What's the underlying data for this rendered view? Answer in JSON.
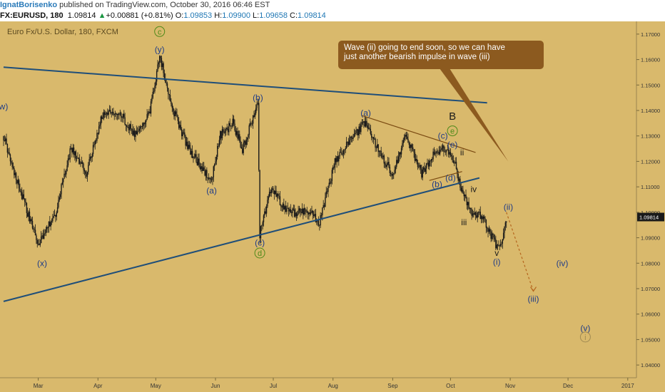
{
  "header": {
    "user": "IgnatBorisenko",
    "published": "published on TradingView.com, October 30, 2016 06:46 EST",
    "symbol": "FX:EURUSD, 180",
    "last": "1.09814",
    "arrow": "▲",
    "change": "+0.00881 (+0.81%)",
    "o_label": "O:",
    "o": "1.09853",
    "h_label": "H:",
    "h": "1.09900",
    "l_label": "L:",
    "l": "1.09658",
    "c_label": "C:",
    "c": "1.09814"
  },
  "callout": {
    "line1": "Wave (ii) going to end soon, so we can have",
    "line2": "just another bearish impulse in wave (iii)"
  },
  "colors": {
    "background": "#d9b96c",
    "candle": "#1a1a1a",
    "trendline": "#1f4e79",
    "wedge": "#7a4a12",
    "wave_label": "#1f3c88",
    "circle_label": "#4f8a1a",
    "forecast": "#b5651d",
    "price_tag": "#1a1a1a"
  },
  "chart_data": {
    "type": "candlestick",
    "instrument": "Euro Fx/U.S. Dollar, 180, FXCM",
    "last_price": "1.09814",
    "y_ticks": [
      "1.17000",
      "1.16000",
      "1.15000",
      "1.14000",
      "1.13000",
      "1.12000",
      "1.11000",
      "1.10000",
      "1.09000",
      "1.08000",
      "1.07000",
      "1.06000",
      "1.05000",
      "1.04000"
    ],
    "x_ticks": [
      "Mar",
      "Apr",
      "May",
      "Jun",
      "Jul",
      "Aug",
      "Sep",
      "Oct",
      "Nov",
      "Dec",
      "2017"
    ],
    "ylim": [
      1.035,
      1.175
    ],
    "price_path": [
      [
        "2016-02-12",
        1.13
      ],
      [
        "2016-02-20",
        1.11
      ],
      [
        "2016-03-01",
        1.087
      ],
      [
        "2016-03-03",
        1.09
      ],
      [
        "2016-03-10",
        1.1
      ],
      [
        "2016-03-18",
        1.125
      ],
      [
        "2016-03-26",
        1.115
      ],
      [
        "2016-04-03",
        1.138
      ],
      [
        "2016-04-12",
        1.14
      ],
      [
        "2016-04-20",
        1.13
      ],
      [
        "2016-04-28",
        1.14
      ],
      [
        "2016-05-03",
        1.1616
      ],
      [
        "2016-05-10",
        1.14
      ],
      [
        "2016-05-18",
        1.125
      ],
      [
        "2016-05-30",
        1.112
      ],
      [
        "2016-06-03",
        1.13
      ],
      [
        "2016-06-10",
        1.135
      ],
      [
        "2016-06-15",
        1.125
      ],
      [
        "2016-06-23",
        1.142
      ],
      [
        "2016-06-24",
        1.0915
      ],
      [
        "2016-06-30",
        1.11
      ],
      [
        "2016-07-08",
        1.1
      ],
      [
        "2016-07-20",
        1.1
      ],
      [
        "2016-07-25",
        1.096
      ],
      [
        "2016-08-02",
        1.12
      ],
      [
        "2016-08-18",
        1.136
      ],
      [
        "2016-08-24",
        1.125
      ],
      [
        "2016-09-01",
        1.115
      ],
      [
        "2016-09-08",
        1.13
      ],
      [
        "2016-09-16",
        1.115
      ],
      [
        "2016-09-22",
        1.123
      ],
      [
        "2016-09-27",
        1.125
      ],
      [
        "2016-10-03",
        1.12
      ],
      [
        "2016-10-06",
        1.11
      ],
      [
        "2016-10-12",
        1.1
      ],
      [
        "2016-10-18",
        1.098
      ],
      [
        "2016-10-25",
        1.086
      ],
      [
        "2016-10-28",
        1.09
      ],
      [
        "2016-10-30",
        1.0981
      ]
    ],
    "trendlines": [
      {
        "name": "upper",
        "from": [
          "2016-02-12",
          1.157
        ],
        "to": [
          "2016-10-20",
          1.143
        ]
      },
      {
        "name": "lower",
        "from": [
          "2016-02-12",
          1.065
        ],
        "to": [
          "2016-10-16",
          1.1135
        ]
      },
      {
        "name": "wedge-top",
        "from": [
          "2016-08-16",
          1.138
        ],
        "to": [
          "2016-10-14",
          1.1235
        ]
      },
      {
        "name": "wedge-bottom",
        "from": [
          "2016-09-20",
          1.1125
        ],
        "to": [
          "2016-10-07",
          1.116
        ]
      }
    ],
    "forecast": [
      [
        "2016-10-30",
        1.1
      ],
      [
        "2016-11-13",
        1.069
      ]
    ],
    "wave_labels": [
      {
        "text": "w)",
        "date": "2016-02-12",
        "price": 1.1415,
        "style": "plain"
      },
      {
        "text": "(x)",
        "date": "2016-03-03",
        "price": 1.08,
        "style": "plain"
      },
      {
        "text": "(y)",
        "date": "2016-05-03",
        "price": 1.164,
        "style": "plain"
      },
      {
        "text": "c",
        "date": "2016-05-03",
        "price": 1.171,
        "style": "circle"
      },
      {
        "text": "(a)",
        "date": "2016-05-30",
        "price": 1.1085,
        "style": "plain"
      },
      {
        "text": "(b)",
        "date": "2016-06-23",
        "price": 1.145,
        "style": "plain"
      },
      {
        "text": "(c)",
        "date": "2016-06-24",
        "price": 1.088,
        "style": "plain"
      },
      {
        "text": "d",
        "date": "2016-06-24",
        "price": 1.084,
        "style": "circle"
      },
      {
        "text": "(a)",
        "date": "2016-08-18",
        "price": 1.139,
        "style": "plain"
      },
      {
        "text": "(b)",
        "date": "2016-09-24",
        "price": 1.111,
        "style": "plain"
      },
      {
        "text": "(c)",
        "date": "2016-09-27",
        "price": 1.13,
        "style": "plain"
      },
      {
        "text": "B",
        "date": "2016-10-02",
        "price": 1.1375,
        "style": "big"
      },
      {
        "text": "e",
        "date": "2016-10-02",
        "price": 1.132,
        "style": "circle"
      },
      {
        "text": "(e)",
        "date": "2016-10-02",
        "price": 1.1265,
        "style": "plain"
      },
      {
        "text": "(d)",
        "date": "2016-10-01",
        "price": 1.1135,
        "style": "plain"
      },
      {
        "text": "ii",
        "date": "2016-10-07",
        "price": 1.1235,
        "style": "roman"
      },
      {
        "text": "i",
        "date": "2016-10-07",
        "price": 1.109,
        "style": "roman"
      },
      {
        "text": "iv",
        "date": "2016-10-13",
        "price": 1.109,
        "style": "roman"
      },
      {
        "text": "iii",
        "date": "2016-10-08",
        "price": 1.096,
        "style": "roman"
      },
      {
        "text": "v",
        "date": "2016-10-25",
        "price": 1.084,
        "style": "roman"
      },
      {
        "text": "(i)",
        "date": "2016-10-25",
        "price": 1.0805,
        "style": "plain"
      },
      {
        "text": "(ii)",
        "date": "2016-10-31",
        "price": 1.102,
        "style": "plain"
      },
      {
        "text": "(iii)",
        "date": "2016-11-13",
        "price": 1.066,
        "style": "plain"
      },
      {
        "text": "(iv)",
        "date": "2016-11-28",
        "price": 1.08,
        "style": "plain"
      },
      {
        "text": "(v)",
        "date": "2016-12-10",
        "price": 1.0545,
        "style": "plain"
      },
      {
        "text": "i",
        "date": "2016-12-10",
        "price": 1.051,
        "style": "circle-tan"
      }
    ]
  }
}
